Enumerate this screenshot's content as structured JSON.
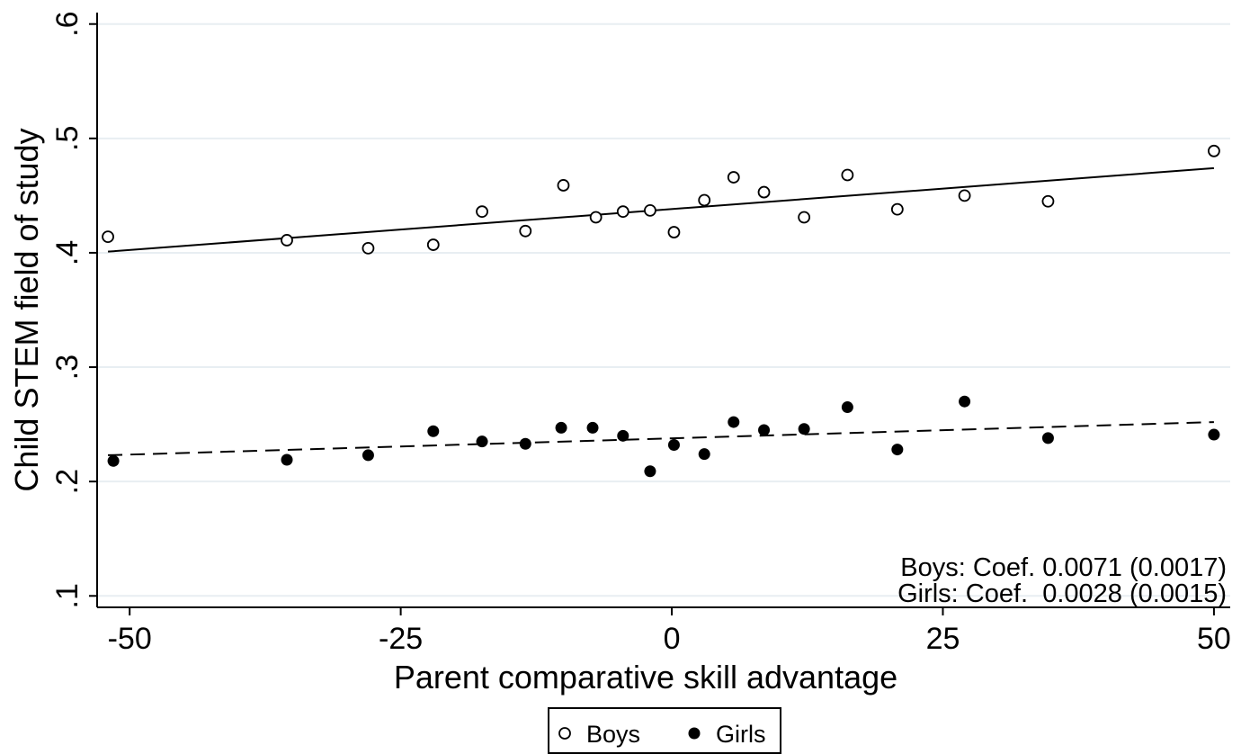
{
  "chart_data": {
    "type": "scatter",
    "title": "",
    "xlabel": "Parent comparative skill advantage",
    "ylabel": "Child STEM field of study",
    "xlim": [
      -53,
      51.5
    ],
    "ylim": [
      0.09,
      0.61
    ],
    "x_ticks": [
      {
        "value": -50,
        "label": "-50"
      },
      {
        "value": -25,
        "label": "-25"
      },
      {
        "value": 0,
        "label": "0"
      },
      {
        "value": 25,
        "label": "25"
      },
      {
        "value": 50,
        "label": "50"
      }
    ],
    "y_ticks": [
      {
        "value": 0.1,
        "label": ".1"
      },
      {
        "value": 0.2,
        "label": ".2"
      },
      {
        "value": 0.3,
        "label": ".3"
      },
      {
        "value": 0.4,
        "label": ".4"
      },
      {
        "value": 0.5,
        "label": ".5"
      },
      {
        "value": 0.6,
        "label": ".6"
      }
    ],
    "grid": true,
    "legend_position": "bottom",
    "series": [
      {
        "name": "Boys",
        "marker": "hollow-circle",
        "x": [
          -52,
          -35.5,
          -28,
          -22,
          -17.5,
          -13.5,
          -10,
          -7,
          -4.5,
          -2,
          0.2,
          3,
          5.7,
          8.5,
          12.2,
          16.2,
          20.8,
          27,
          34.7,
          50
        ],
        "y": [
          0.414,
          0.411,
          0.404,
          0.407,
          0.436,
          0.419,
          0.459,
          0.431,
          0.436,
          0.437,
          0.418,
          0.446,
          0.466,
          0.453,
          0.431,
          0.468,
          0.438,
          0.45,
          0.445,
          0.489
        ],
        "fit": {
          "style": "solid",
          "x": [
            -52,
            50
          ],
          "y": [
            0.401,
            0.474
          ]
        }
      },
      {
        "name": "Girls",
        "marker": "filled-circle",
        "x": [
          -51.5,
          -35.5,
          -28,
          -22,
          -17.5,
          -13.5,
          -10.2,
          -7.3,
          -4.5,
          -2,
          0.2,
          3,
          5.7,
          8.5,
          12.2,
          16.2,
          20.8,
          27,
          34.7,
          50
        ],
        "y": [
          0.218,
          0.219,
          0.223,
          0.244,
          0.235,
          0.233,
          0.247,
          0.247,
          0.24,
          0.209,
          0.232,
          0.224,
          0.252,
          0.245,
          0.246,
          0.265,
          0.228,
          0.27,
          0.238,
          0.241
        ],
        "fit": {
          "style": "dashed",
          "x": [
            -52,
            50
          ],
          "y": [
            0.223,
            0.252
          ]
        }
      }
    ],
    "annotations": [
      "Boys: Coef. 0.0071 (0.0017)",
      "Girls: Coef.  0.0028 (0.0015)"
    ]
  },
  "colors": {
    "background": "#ffffff",
    "grid": "#e8eef2",
    "axis": "#000000",
    "marker": "#000000"
  }
}
